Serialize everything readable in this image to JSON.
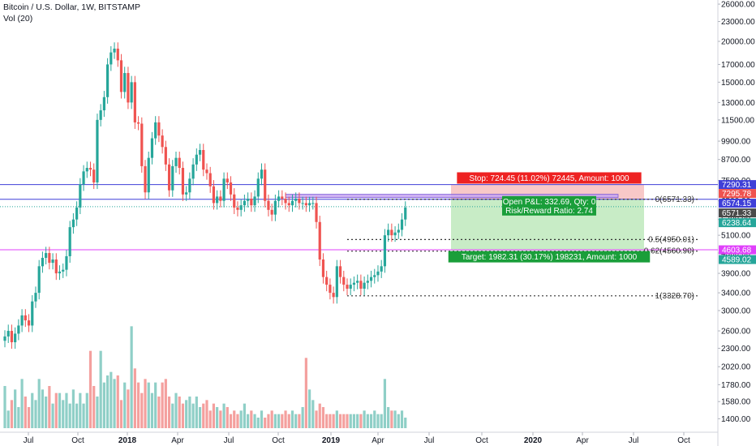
{
  "header": {
    "title": "Bitcoin / U.S. Dollar, 1W, BITSTAMP",
    "volume_label": "Vol (20)"
  },
  "colors": {
    "up": "#26a69a",
    "down": "#ef5350",
    "vol_up": "#8fcfc7",
    "vol_down": "#f4a09e",
    "blue_line": "#3f3fd8",
    "magenta_line": "#e040fb",
    "stop_fill": "#f8c8c8",
    "target_fill": "#c8ecc6",
    "range_fill": "#c5a3f0"
  },
  "chart_data": {
    "type": "candlestick",
    "symbol": "Bitcoin / U.S. Dollar",
    "interval": "1W",
    "exchange": "BITSTAMP",
    "y_scale": "log",
    "ylim": [
      1200,
      27000
    ],
    "price_ticks": [
      "26000.00",
      "23000.00",
      "20000.00",
      "17000.00",
      "15000.00",
      "13000.00",
      "11500.00",
      "9900.00",
      "8700.00",
      "7500.00",
      "6500.00",
      "5700.00",
      "5100.00",
      "4500.00",
      "3900.00",
      "3400.00",
      "3000.00",
      "2600.00",
      "2300.00",
      "2020.00",
      "1780.00",
      "1580.00",
      "1400.00"
    ],
    "time_ticks": [
      "Jul",
      "Oct",
      "2018",
      "Apr",
      "Jul",
      "Oct",
      "2019",
      "Apr",
      "Jul",
      "Oct",
      "2020",
      "Apr",
      "Jul",
      "Oct"
    ],
    "closes": [
      2500,
      2600,
      2400,
      2550,
      2700,
      2900,
      2800,
      2700,
      3200,
      3400,
      4100,
      4350,
      4500,
      4200,
      4300,
      3900,
      3950,
      4000,
      4400,
      5400,
      5700,
      6200,
      7300,
      8000,
      8200,
      8100,
      7400,
      11500,
      12300,
      13500,
      17000,
      18500,
      19000,
      17500,
      14000,
      16000,
      13000,
      15000,
      11300,
      11200,
      8300,
      6900,
      8800,
      10100,
      11300,
      10300,
      9500,
      8400,
      7000,
      8300,
      8800,
      8200,
      6800,
      6900,
      7600,
      8400,
      9000,
      9300,
      8100,
      7900,
      7200,
      6400,
      6700,
      6500,
      7600,
      7400,
      6800,
      6200,
      6100,
      6300,
      6500,
      6600,
      6300,
      6700,
      7600,
      8100,
      6500,
      6100,
      5900,
      6500,
      6700,
      6600,
      6400,
      6300,
      6500,
      6600,
      6400,
      6400,
      6300,
      6400,
      6400,
      5600,
      4300,
      3800,
      3600,
      3400,
      3300,
      4100,
      3800,
      3600,
      3500,
      3600,
      3650,
      3700,
      3500,
      3650,
      3700,
      3800,
      3850,
      3950,
      4100,
      5100,
      5300,
      5100,
      5200,
      5300,
      5700,
      6200
    ],
    "volumes": [
      1900,
      1550,
      1700,
      1850,
      1600,
      2000,
      1750,
      1600,
      1800,
      1700,
      2000,
      1850,
      1750,
      1900,
      1650,
      1800,
      1800,
      1700,
      1800,
      1650,
      1850,
      1650,
      1800,
      1650,
      1800,
      2400,
      1900,
      1750,
      2400,
      1950,
      2050,
      2100,
      2000,
      2050,
      1700,
      1950,
      1850,
      2750,
      2150,
      1950,
      1800,
      2000,
      1950,
      1800,
      1950,
      1750,
      1950,
      2000,
      1750,
      1650,
      1800,
      1750,
      1650,
      1700,
      1750,
      1650,
      1750,
      1600,
      1650,
      1700,
      1550,
      1650,
      1600,
      1550,
      1650,
      1600,
      1500,
      1550,
      1500,
      1550,
      1650,
      1500,
      1550,
      1500,
      1450,
      1550,
      1450,
      1500,
      1550,
      1500,
      1500,
      1500,
      1550,
      1500,
      1550,
      1500,
      1500,
      1600,
      2300,
      1850,
      1700,
      1550,
      1650,
      1600,
      1500,
      1500,
      1500,
      1550,
      1500,
      1500,
      1500,
      1500,
      1500,
      1500,
      1500,
      1550,
      1500,
      1500,
      1550,
      1500,
      1500,
      2000,
      1600,
      1550,
      1550,
      1500,
      1550,
      1450
    ],
    "levels": {
      "blue_upper": 7290.31,
      "blue_lower": 6574.15,
      "magenta": 4603.68,
      "stop_price": 7295.78,
      "last_price": 6571.33,
      "last_close": 6238.64,
      "target_price": 4589.02,
      "fib_0": 6571.33,
      "fib_05": 4950.01,
      "fib_062": 4560.9,
      "fib_1": 3328.7
    },
    "axis_tags": [
      {
        "label": "7290.31",
        "price": 7290.31,
        "color": "#3f3fd8"
      },
      {
        "label": "7295.78",
        "price": 7295.78,
        "color": "#ef5350",
        "row": 1
      },
      {
        "label": "6574.15",
        "price": 6574.15,
        "color": "#3f3fd8",
        "row": 2
      },
      {
        "label": "6571.33",
        "price": 6571.33,
        "color": "#4a4a4a",
        "row": 3
      },
      {
        "label": "6238.64",
        "price": 6238.64,
        "color": "#26a69a",
        "row": 4
      },
      {
        "label": "4603.68",
        "price": 4603.68,
        "color": "#e040fb"
      },
      {
        "label": "4589.02",
        "price": 4589.02,
        "color": "#26a69a",
        "row": 6
      }
    ],
    "annotations": {
      "stop": "Stop: 724.45 (11.02%) 72445, Amount: 1000",
      "target": "Target: 1982.31 (30.17%) 198231, Amount: 1000",
      "open_pnl": "Open P&L: 332.69, Qty: 0",
      "risk_reward": "Risk/Reward Ratio: 2.74",
      "fib_0_label": "0(6571.33)",
      "fib_05_label": "0.5(4950.01)",
      "fib_062_label": "0.62(4560.90)",
      "fib_1_label": "1(3328.70)"
    }
  }
}
